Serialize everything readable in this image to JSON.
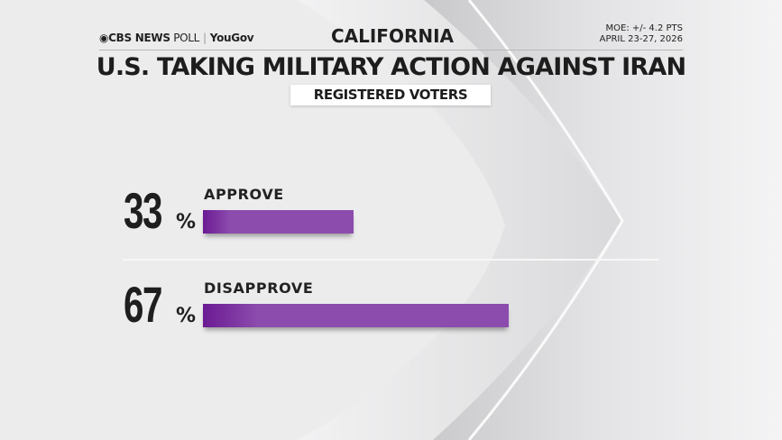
{
  "header": {
    "logo_primary": "CBS NEWS",
    "logo_secondary": "POLL",
    "logo_partner": "YouGov",
    "state": "CALIFORNIA",
    "moe": "MOE: +/- 4.2 PTS",
    "dates": "APRIL 23-27, 2026",
    "title": "U.S. TAKING MILITARY ACTION AGAINST IRAN",
    "subgroup": "REGISTERED VOTERS"
  },
  "colors": {
    "bar": "#8c4cad",
    "bar_dark": "#6b1a93",
    "background": "#ebebec"
  },
  "chart_data": {
    "type": "bar",
    "orientation": "horizontal",
    "title": "U.S. TAKING MILITARY ACTION AGAINST IRAN",
    "categories": [
      "APPROVE",
      "DISAPPROVE"
    ],
    "values": [
      33,
      67
    ],
    "value_labels": [
      "33",
      "67"
    ],
    "unit": "%",
    "xlim": [
      0,
      100
    ],
    "grid": false
  }
}
